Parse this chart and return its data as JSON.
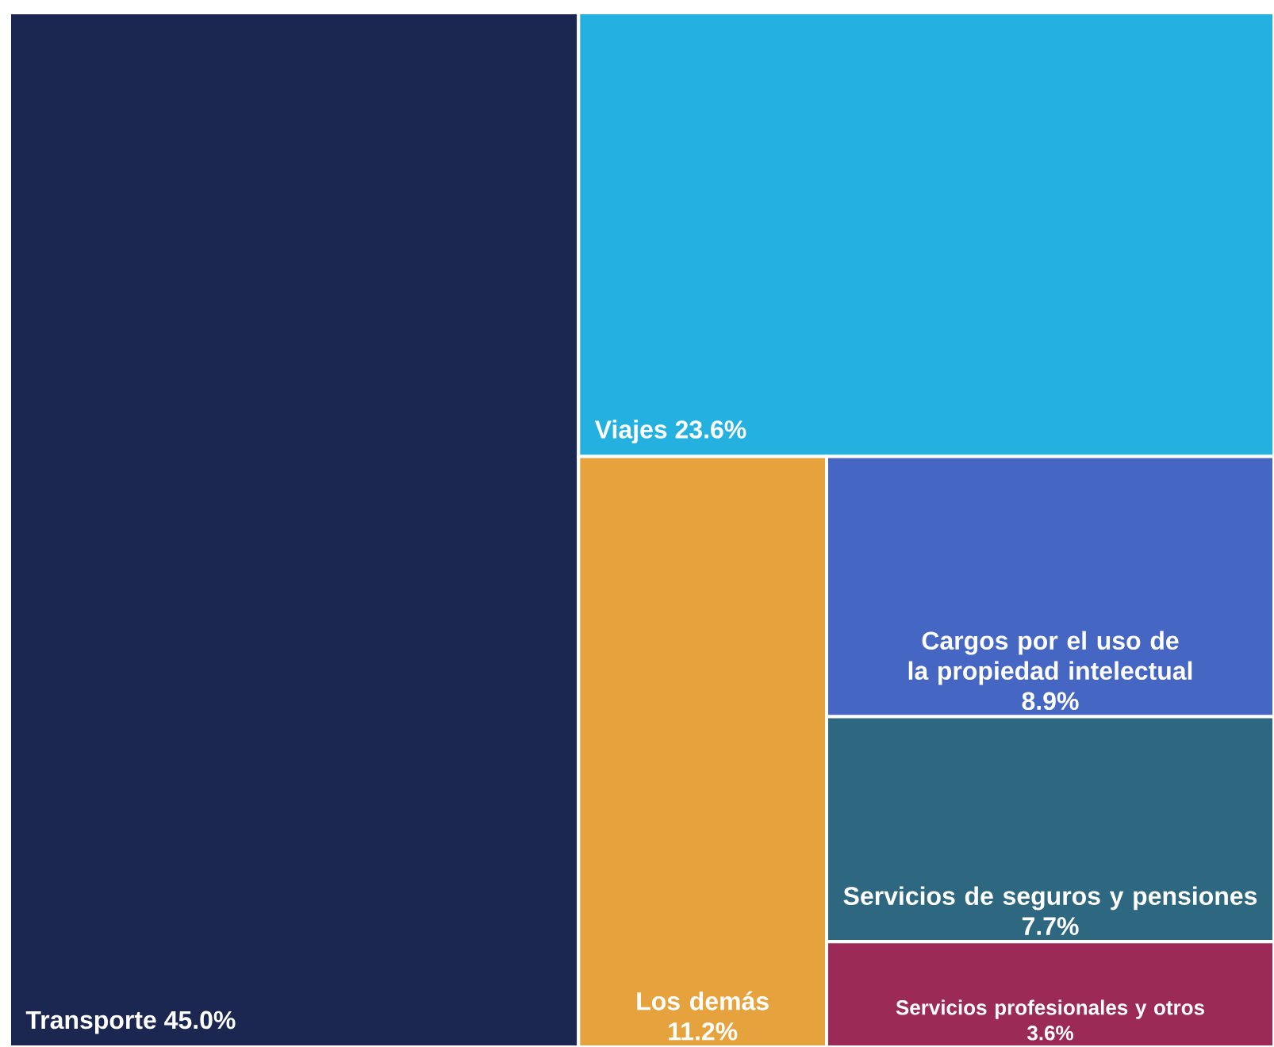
{
  "chart_data": {
    "type": "other",
    "categories": [
      "Transporte",
      "Viajes",
      "Los demás",
      "Cargos por el uso de la propiedad intelectual",
      "Servicios de seguros y pensiones",
      "Servicios profesionales y otros"
    ],
    "values": [
      45.0,
      23.6,
      11.2,
      8.9,
      7.7,
      3.6
    ],
    "value_labels": [
      "45.0%",
      "23.6%",
      "11.2%",
      "8.9%",
      "7.7%",
      "3.6%"
    ],
    "colors": [
      "#1b2651",
      "#25b1e0",
      "#e6a23c",
      "#4666c4",
      "#2e6880",
      "#9c2a56"
    ]
  }
}
